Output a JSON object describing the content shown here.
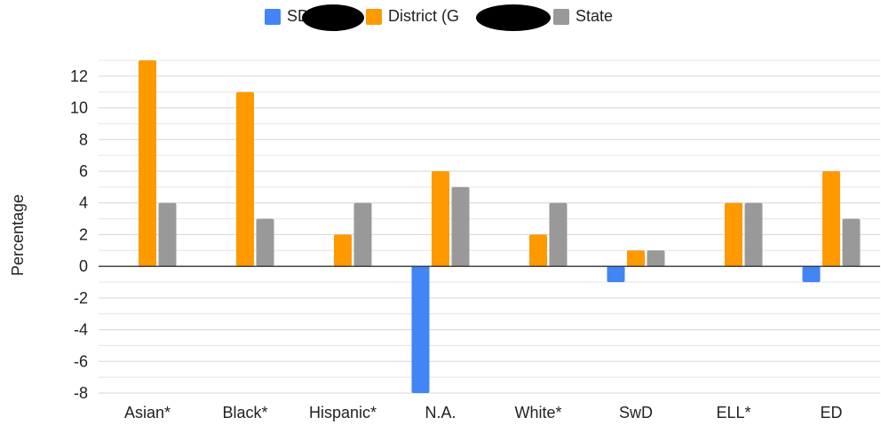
{
  "chart_data": {
    "type": "bar",
    "title": "",
    "xlabel": "",
    "ylabel": "Percentage",
    "categories": [
      "Asian*",
      "Black*",
      "Hispanic*",
      "N.A.",
      "White*",
      "SwD",
      "ELL*",
      "ED"
    ],
    "ylim": [
      -8,
      13
    ],
    "yticks": [
      12,
      10,
      8,
      6,
      4,
      2,
      0,
      -2,
      -4,
      -6,
      -8
    ],
    "grid": true,
    "legend": "top",
    "series": [
      {
        "name": "SD",
        "color": "#4285f4",
        "values": [
          0,
          0,
          0,
          -8,
          0,
          -1,
          0,
          -1
        ]
      },
      {
        "name": "District (G",
        "color": "#ff9900",
        "values": [
          13,
          11,
          2,
          6,
          2,
          1,
          4,
          6
        ]
      },
      {
        "name": "State",
        "color": "#999999",
        "values": [
          4,
          3,
          4,
          5,
          4,
          1,
          4,
          3
        ]
      }
    ]
  },
  "redaction_color": "#000000"
}
